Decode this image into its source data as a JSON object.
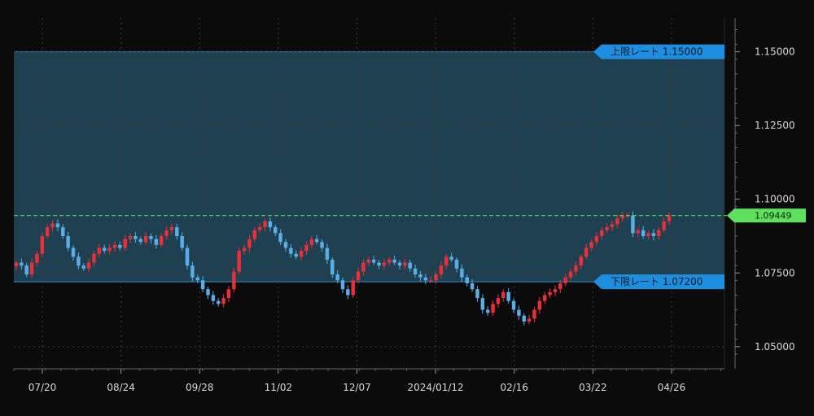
{
  "chart_data": {
    "type": "candlestick",
    "x_ticks": [
      "07/20",
      "08/24",
      "09/28",
      "11/02",
      "12/07",
      "2024/01/12",
      "02/16",
      "03/22",
      "04/26"
    ],
    "y_ticks": [
      "1.15000",
      "1.12500",
      "1.10000",
      "1.07500",
      "1.05000"
    ],
    "ylim": [
      1.0425,
      1.1615
    ],
    "upper_band": {
      "label": "上限レート 1.15000",
      "value": 1.15
    },
    "lower_band": {
      "label": "下限レート 1.07200",
      "value": 1.072
    },
    "current": {
      "label": "1.09449",
      "value": 1.09449
    },
    "grid": true,
    "colors": {
      "up": "#e8303a",
      "down": "#5aaee8",
      "band_fill": "#1f4050",
      "band_line": "#2b8fd0",
      "tag": "#1e8fe0",
      "current": "#5ee05e",
      "grid": "#3a3a3a"
    },
    "closes": [
      1.0785,
      1.0775,
      1.0745,
      1.0785,
      1.0815,
      1.0875,
      1.0905,
      1.0918,
      1.0905,
      1.0875,
      1.0835,
      1.0805,
      1.0775,
      1.0765,
      1.0785,
      1.0815,
      1.0835,
      1.0825,
      1.0835,
      1.0845,
      1.0835,
      1.0865,
      1.0875,
      1.0865,
      1.0855,
      1.0875,
      1.0865,
      1.0845,
      1.0875,
      1.0895,
      1.0905,
      1.0875,
      1.0835,
      1.0775,
      1.0735,
      1.0725,
      1.0695,
      1.0675,
      1.0655,
      1.0645,
      1.0665,
      1.0695,
      1.0755,
      1.0825,
      1.0835,
      1.0865,
      1.0895,
      1.0905,
      1.0925,
      1.0905,
      1.0885,
      1.0855,
      1.0835,
      1.0815,
      1.0805,
      1.0825,
      1.0845,
      1.0865,
      1.0855,
      1.0835,
      1.0795,
      1.0745,
      1.0725,
      1.0695,
      1.0675,
      1.0725,
      1.0755,
      1.0785,
      1.0795,
      1.0785,
      1.0775,
      1.0785,
      1.0795,
      1.0785,
      1.0775,
      1.0785,
      1.0765,
      1.0745,
      1.0735,
      1.0725,
      1.0725,
      1.0745,
      1.0775,
      1.0805,
      1.0795,
      1.0765,
      1.0735,
      1.0715,
      1.0695,
      1.0665,
      1.0625,
      1.0615,
      1.0645,
      1.0665,
      1.0685,
      1.0655,
      1.0625,
      1.0605,
      1.0585,
      1.0595,
      1.0625,
      1.0655,
      1.0675,
      1.0685,
      1.0695,
      1.0715,
      1.0735,
      1.0755,
      1.0775,
      1.0805,
      1.0835,
      1.0855,
      1.0875,
      1.0895,
      1.0905,
      1.0915,
      1.0935,
      1.0945,
      1.0945,
      1.0885,
      1.0895,
      1.0875,
      1.0885,
      1.0875,
      1.0895,
      1.0925,
      1.0945
    ]
  }
}
